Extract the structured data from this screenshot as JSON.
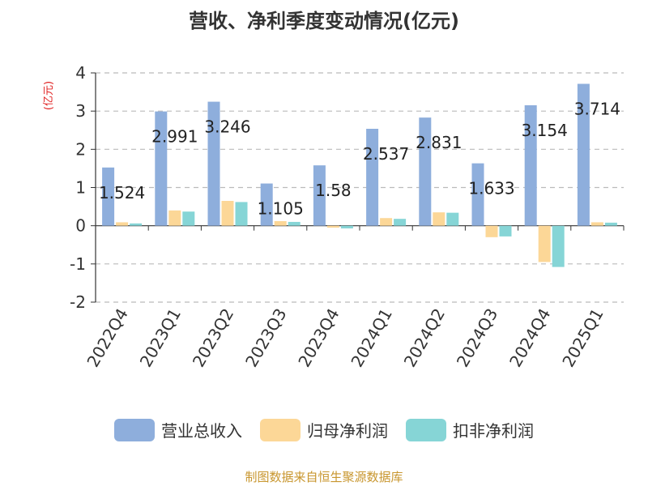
{
  "chart_data": {
    "type": "bar",
    "title": "营收、净利季度变动情况(亿元)",
    "ylabel": "(亿元)",
    "ylim": [
      -2,
      4
    ],
    "yticks": [
      -2,
      -1,
      0,
      1,
      2,
      3,
      4
    ],
    "grid": true,
    "legend_position": "bottom",
    "categories": [
      "2022Q4",
      "2023Q1",
      "2023Q2",
      "2023Q3",
      "2023Q4",
      "2024Q1",
      "2024Q2",
      "2024Q3",
      "2024Q4",
      "2025Q1"
    ],
    "series": [
      {
        "name": "营业总收入",
        "color": "#8eaedc",
        "values": [
          1.524,
          2.991,
          3.246,
          1.105,
          1.58,
          2.537,
          2.831,
          1.633,
          3.154,
          3.714
        ]
      },
      {
        "name": "归母净利润",
        "color": "#fcd797",
        "values": [
          0.09,
          0.4,
          0.65,
          0.12,
          -0.05,
          0.2,
          0.35,
          -0.3,
          -0.95,
          0.09
        ]
      },
      {
        "name": "扣非净利润",
        "color": "#86d5d6",
        "values": [
          0.06,
          0.37,
          0.62,
          0.1,
          -0.07,
          0.18,
          0.34,
          -0.28,
          -1.08,
          0.08
        ]
      }
    ],
    "data_labels": [
      "1.524",
      "2.991",
      "3.246",
      "1.105",
      "1.58",
      "2.537",
      "2.831",
      "1.633",
      "3.154",
      "3.714"
    ]
  },
  "source_note": "制图数据来自恒生聚源数据库"
}
